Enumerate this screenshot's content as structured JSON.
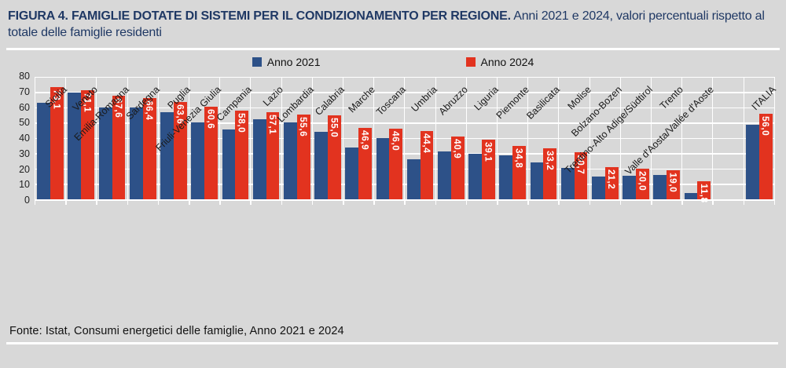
{
  "figure": {
    "title_bold": "FIGURA 4. FAMIGLIE DOTATE DI SISTEMI PER IL CONDIZIONAMENTO PER REGIONE.",
    "title_regular": " Anni 2021 e 2024, valori percentuali rispetto al totale delle famiglie residenti",
    "source": "Fonte: Istat, Consumi energetici delle famiglie, Anno 2021 e 2024"
  },
  "legend": [
    {
      "label": "Anno 2021",
      "color": "#2D5188"
    },
    {
      "label": "Anno 2024",
      "color": "#E2331F"
    }
  ],
  "colors": {
    "bar_2021": "#2D5188",
    "bar_2024": "#E2331F",
    "title_navy": "#1F3864",
    "background": "#D8D8D8",
    "gridline": "#FFFFFF",
    "value_label": "#FFFFFF"
  },
  "chart_data": {
    "type": "bar",
    "title": "FIGURA 4. FAMIGLIE DOTATE DI SISTEMI PER IL CONDIZIONAMENTO PER REGIONE. Anni 2021 e 2024, valori percentuali rispetto al totale delle famiglie residenti",
    "xlabel": "",
    "ylabel": "",
    "ylim": [
      0,
      80
    ],
    "yticks": [
      0,
      10,
      20,
      30,
      40,
      50,
      60,
      70,
      80
    ],
    "grid": true,
    "legend_position": "top",
    "gap_before_category": "ITALIA",
    "value_labels": "only on Anno 2024 series, vertical, comma decimal, white, inside top of bar",
    "categories": [
      "Sicilia",
      "Veneto",
      "Emilia-Romagna",
      "Sardegna",
      "Puglia",
      "Friuli-Venezia Giulia",
      "Campania",
      "Lazio",
      "Lombardia",
      "Calabria",
      "Marche",
      "Toscana",
      "Umbria",
      "Abruzzo",
      "Liguria",
      "Piemonte",
      "Basilicata",
      "Molise",
      "Bolzano-Bozen",
      "Trentino-Alto Adige/Südtirol",
      "Trento",
      "Valle d'Aosta/Vallée d'Aoste",
      "ITALIA"
    ],
    "series": [
      {
        "name": "Anno 2021",
        "color": "#2D5188",
        "values_estimated_from_pixels": true,
        "values": [
          63.0,
          69.5,
          60.0,
          59.9,
          57.0,
          50.4,
          45.8,
          52.4,
          50.2,
          44.0,
          34.0,
          40.0,
          26.4,
          31.5,
          29.8,
          28.8,
          24.3,
          20.3,
          14.7,
          15.6,
          15.7,
          4.3,
          48.8
        ]
      },
      {
        "name": "Anno 2024",
        "color": "#E2331F",
        "values": [
          73.1,
          71.1,
          67.6,
          66.4,
          63.6,
          60.6,
          58.0,
          57.1,
          55.6,
          55.0,
          46.9,
          46.0,
          44.4,
          40.9,
          39.1,
          34.8,
          33.2,
          30.7,
          21.2,
          20.0,
          19.0,
          11.8,
          56.0
        ]
      }
    ]
  }
}
